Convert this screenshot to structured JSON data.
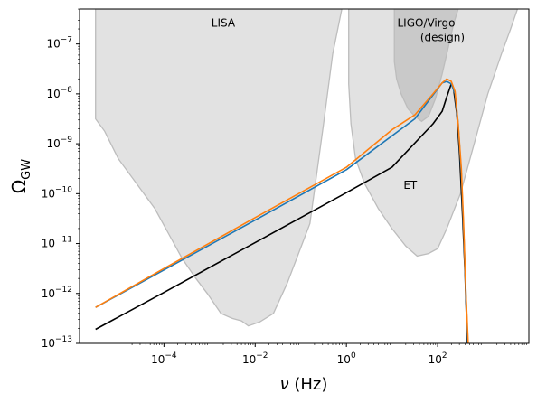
{
  "chart_data": {
    "type": "line",
    "title": "",
    "xlabel": {
      "symbol": "ν",
      "unit": " (Hz)"
    },
    "ylabel": {
      "base": "Ω",
      "sub": "GW"
    },
    "xscale": "log",
    "yscale": "log",
    "xlim_log10": [
      -5.85,
      4.0
    ],
    "ylim_log10": [
      -13,
      -6.3
    ],
    "grid": false,
    "legend": "none",
    "xticks": [
      {
        "log10": -4,
        "base": "10",
        "exp": "−4"
      },
      {
        "log10": -2,
        "base": "10",
        "exp": "−2"
      },
      {
        "log10": 0,
        "base": "10",
        "exp": "0"
      },
      {
        "log10": 2,
        "base": "10",
        "exp": "2"
      }
    ],
    "yticks": [
      {
        "log10": -13,
        "base": "10",
        "exp": "−13"
      },
      {
        "log10": -12,
        "base": "10",
        "exp": "−12"
      },
      {
        "log10": -11,
        "base": "10",
        "exp": "−11"
      },
      {
        "log10": -10,
        "base": "10",
        "exp": "−10"
      },
      {
        "log10": -9,
        "base": "10",
        "exp": "−9"
      },
      {
        "log10": -8,
        "base": "10",
        "exp": "−8"
      },
      {
        "log10": -7,
        "base": "10",
        "exp": "−7"
      }
    ],
    "sensitivity_regions": [
      {
        "name": "LISA",
        "label_lines": [
          "LISA"
        ],
        "label_at_log10": [
          -2.7,
          -6.65
        ],
        "fill": "#d3d3d3",
        "outline": [
          [
            -5.5,
            -8.5
          ],
          [
            -5.3,
            -8.75
          ],
          [
            -5.0,
            -9.3
          ],
          [
            -4.6,
            -9.8
          ],
          [
            -4.2,
            -10.3
          ],
          [
            -3.9,
            -10.8
          ],
          [
            -3.6,
            -11.3
          ],
          [
            -3.3,
            -11.7
          ],
          [
            -3.05,
            -12.0
          ],
          [
            -2.75,
            -12.4
          ],
          [
            -2.5,
            -12.5
          ],
          [
            -2.3,
            -12.55
          ],
          [
            -2.15,
            -12.65
          ],
          [
            -1.9,
            -12.57
          ],
          [
            -1.6,
            -12.4
          ],
          [
            -1.3,
            -11.8
          ],
          [
            -1.05,
            -11.2
          ],
          [
            -0.8,
            -10.6
          ],
          [
            -0.5,
            -8.6
          ],
          [
            -0.3,
            -7.2
          ],
          [
            -0.1,
            -6.3
          ],
          [
            -5.5,
            -6.3
          ]
        ]
      },
      {
        "name": "ET",
        "label_lines": [
          "ET"
        ],
        "label_at_log10": [
          1.4,
          -9.9
        ],
        "fill": "#d3d3d3",
        "outline": [
          [
            0.05,
            -7.8
          ],
          [
            0.1,
            -8.6
          ],
          [
            0.2,
            -9.3
          ],
          [
            0.4,
            -9.8
          ],
          [
            0.7,
            -10.3
          ],
          [
            1.0,
            -10.7
          ],
          [
            1.3,
            -11.05
          ],
          [
            1.55,
            -11.25
          ],
          [
            1.8,
            -11.2
          ],
          [
            2.0,
            -11.1
          ],
          [
            2.2,
            -10.7
          ],
          [
            2.5,
            -10.0
          ],
          [
            2.8,
            -9.0
          ],
          [
            3.1,
            -8.0
          ],
          [
            3.4,
            -7.2
          ],
          [
            3.6,
            -6.7
          ],
          [
            3.75,
            -6.3
          ],
          [
            0.05,
            -6.3
          ]
        ]
      },
      {
        "name": "LIGO/Virgo (design)",
        "label_lines": [
          "LIGO/Virgo",
          "(design)"
        ],
        "label_at_log10": [
          1.75,
          -6.65
        ],
        "fill": "#b4b4b4",
        "outline": [
          [
            1.05,
            -7.35
          ],
          [
            1.1,
            -7.7
          ],
          [
            1.2,
            -8.0
          ],
          [
            1.35,
            -8.3
          ],
          [
            1.5,
            -8.45
          ],
          [
            1.65,
            -8.55
          ],
          [
            1.8,
            -8.45
          ],
          [
            1.95,
            -8.1
          ],
          [
            2.1,
            -7.6
          ],
          [
            2.25,
            -7.0
          ],
          [
            2.35,
            -6.6
          ],
          [
            2.45,
            -6.3
          ],
          [
            1.05,
            -6.3
          ]
        ]
      }
    ],
    "series": [
      {
        "color": "#000000",
        "points_log10": [
          [
            -5.5,
            -12.72
          ],
          [
            -4.0,
            -11.98
          ],
          [
            -2.0,
            -10.98
          ],
          [
            0.0,
            -9.98
          ],
          [
            1.0,
            -9.47
          ],
          [
            1.9,
            -8.6
          ],
          [
            2.1,
            -8.35
          ],
          [
            2.2,
            -8.06
          ],
          [
            2.3,
            -7.8
          ],
          [
            2.35,
            -7.9
          ],
          [
            2.42,
            -8.4
          ],
          [
            2.48,
            -9.2
          ],
          [
            2.55,
            -10.5
          ],
          [
            2.6,
            -11.6
          ],
          [
            2.65,
            -13.0
          ]
        ]
      },
      {
        "color": "#1f77b4",
        "points_log10": [
          [
            -5.5,
            -12.28
          ],
          [
            -4.0,
            -11.53
          ],
          [
            -2.0,
            -10.53
          ],
          [
            0.0,
            -9.52
          ],
          [
            1.5,
            -8.5
          ],
          [
            2.0,
            -7.9
          ],
          [
            2.1,
            -7.78
          ],
          [
            2.2,
            -7.75
          ],
          [
            2.3,
            -7.8
          ],
          [
            2.38,
            -8.0
          ],
          [
            2.45,
            -8.6
          ],
          [
            2.52,
            -9.6
          ],
          [
            2.57,
            -10.7
          ],
          [
            2.62,
            -12.0
          ],
          [
            2.66,
            -13.0
          ]
        ]
      },
      {
        "color": "#ff7f0e",
        "points_log10": [
          [
            -5.5,
            -12.28
          ],
          [
            -4.0,
            -11.5
          ],
          [
            -2.0,
            -10.48
          ],
          [
            0.0,
            -9.47
          ],
          [
            1.0,
            -8.72
          ],
          [
            1.5,
            -8.42
          ],
          [
            1.9,
            -8.0
          ],
          [
            2.1,
            -7.78
          ],
          [
            2.2,
            -7.7
          ],
          [
            2.3,
            -7.75
          ],
          [
            2.38,
            -7.95
          ],
          [
            2.45,
            -8.6
          ],
          [
            2.52,
            -9.5
          ],
          [
            2.57,
            -10.6
          ],
          [
            2.62,
            -12.0
          ],
          [
            2.67,
            -13.0
          ]
        ]
      }
    ]
  }
}
